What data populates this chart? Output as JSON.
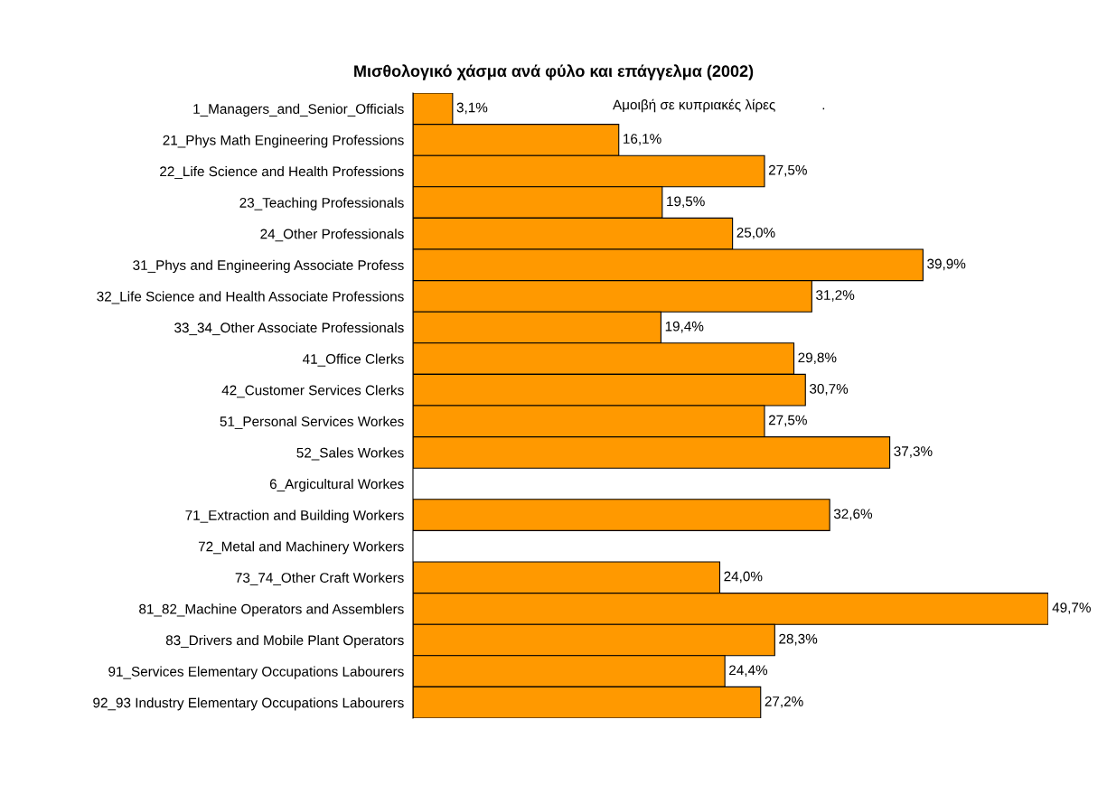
{
  "chart_data": {
    "type": "bar",
    "orientation": "horizontal",
    "title": "Μισθολογικό χάσμα ανά φύλο και επάγγελμα (2002)",
    "subtitle": "Αμοιβή σε κυπριακές λίρες            .",
    "categories": [
      "1_Managers_and_Senior_Officials",
      "21_Phys Math Engineering Professions",
      "22_Life Science and Health Professions",
      "23_Teaching Professionals",
      "24_Other Professionals",
      "31_Phys and Engineering Associate Profess",
      "32_Life Science and Health Associate Professions",
      "33_34_Other Associate Professionals",
      "41_Office Clerks",
      "42_Customer Services Clerks",
      "51_Personal Services Workes",
      "52_Sales Workes",
      "6_Argicultural Workes",
      "71_Extraction and Building Workers",
      "72_Metal and Machinery Workers",
      "73_74_Other Craft Workers",
      "81_82_Machine Operators and Assemblers",
      "83_Drivers and Mobile Plant Operators",
      "91_Services Elementary Occupations Labourers",
      "92_93 Industry Elementary Occupations Labourers"
    ],
    "values": [
      3.1,
      16.1,
      27.5,
      19.5,
      25.0,
      39.9,
      31.2,
      19.4,
      29.8,
      30.7,
      27.5,
      37.3,
      null,
      32.6,
      null,
      24.0,
      49.7,
      28.3,
      24.4,
      27.2
    ],
    "value_labels": [
      "3,1%",
      "16,1%",
      "27,5%",
      "19,5%",
      "25,0%",
      "39,9%",
      "31,2%",
      "19,4%",
      "29,8%",
      "30,7%",
      "27,5%",
      "37,3%",
      null,
      "32,6%",
      null,
      "24,0%",
      "49,7%",
      "28,3%",
      "24,4%",
      "27,2%"
    ],
    "color": "#ff9900",
    "tick_labels": "y",
    "grid": false,
    "legend": false
  }
}
